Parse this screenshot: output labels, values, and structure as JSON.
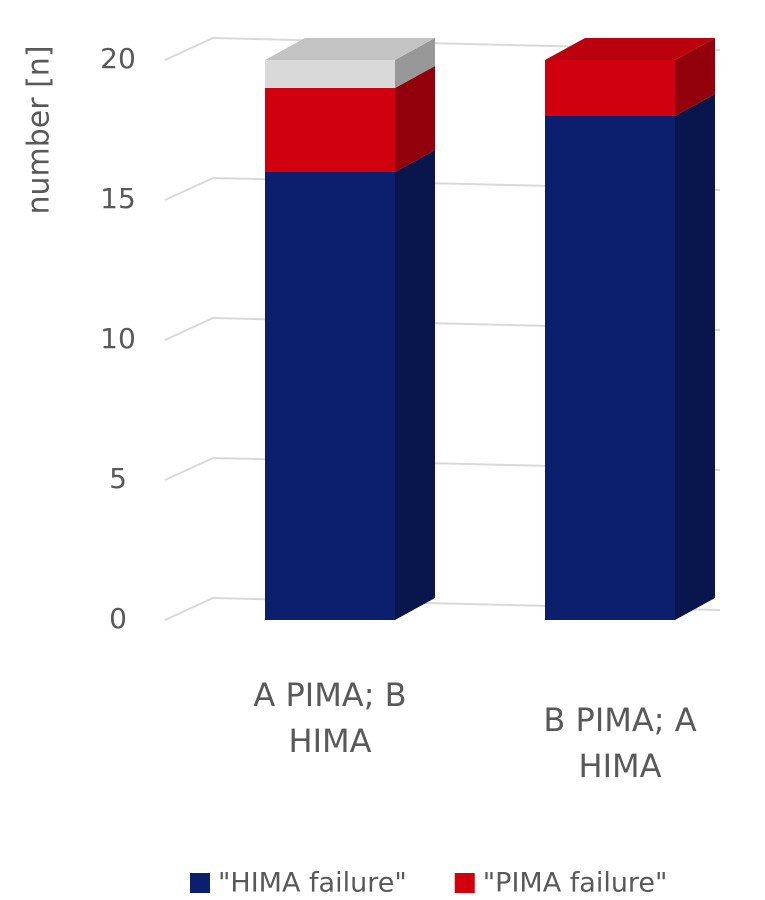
{
  "chart_data": {
    "type": "bar",
    "stacked": true,
    "y_label": "number [n]",
    "categories": [
      "A PIMA; B HIMA",
      "B PIMA; A HIMA"
    ],
    "series": [
      {
        "name": "\"HIMA failure\"",
        "color": "#0b1f6e",
        "values": [
          16,
          18
        ]
      },
      {
        "name": "\"PIMA failure\"",
        "color": "#d0000f",
        "values": [
          3,
          2
        ]
      },
      {
        "color": "#d9d9d9",
        "values": [
          1,
          0
        ]
      }
    ],
    "ylim": [
      0,
      20
    ],
    "yticks": [
      0,
      5,
      10,
      15,
      20
    ],
    "grid": true
  }
}
